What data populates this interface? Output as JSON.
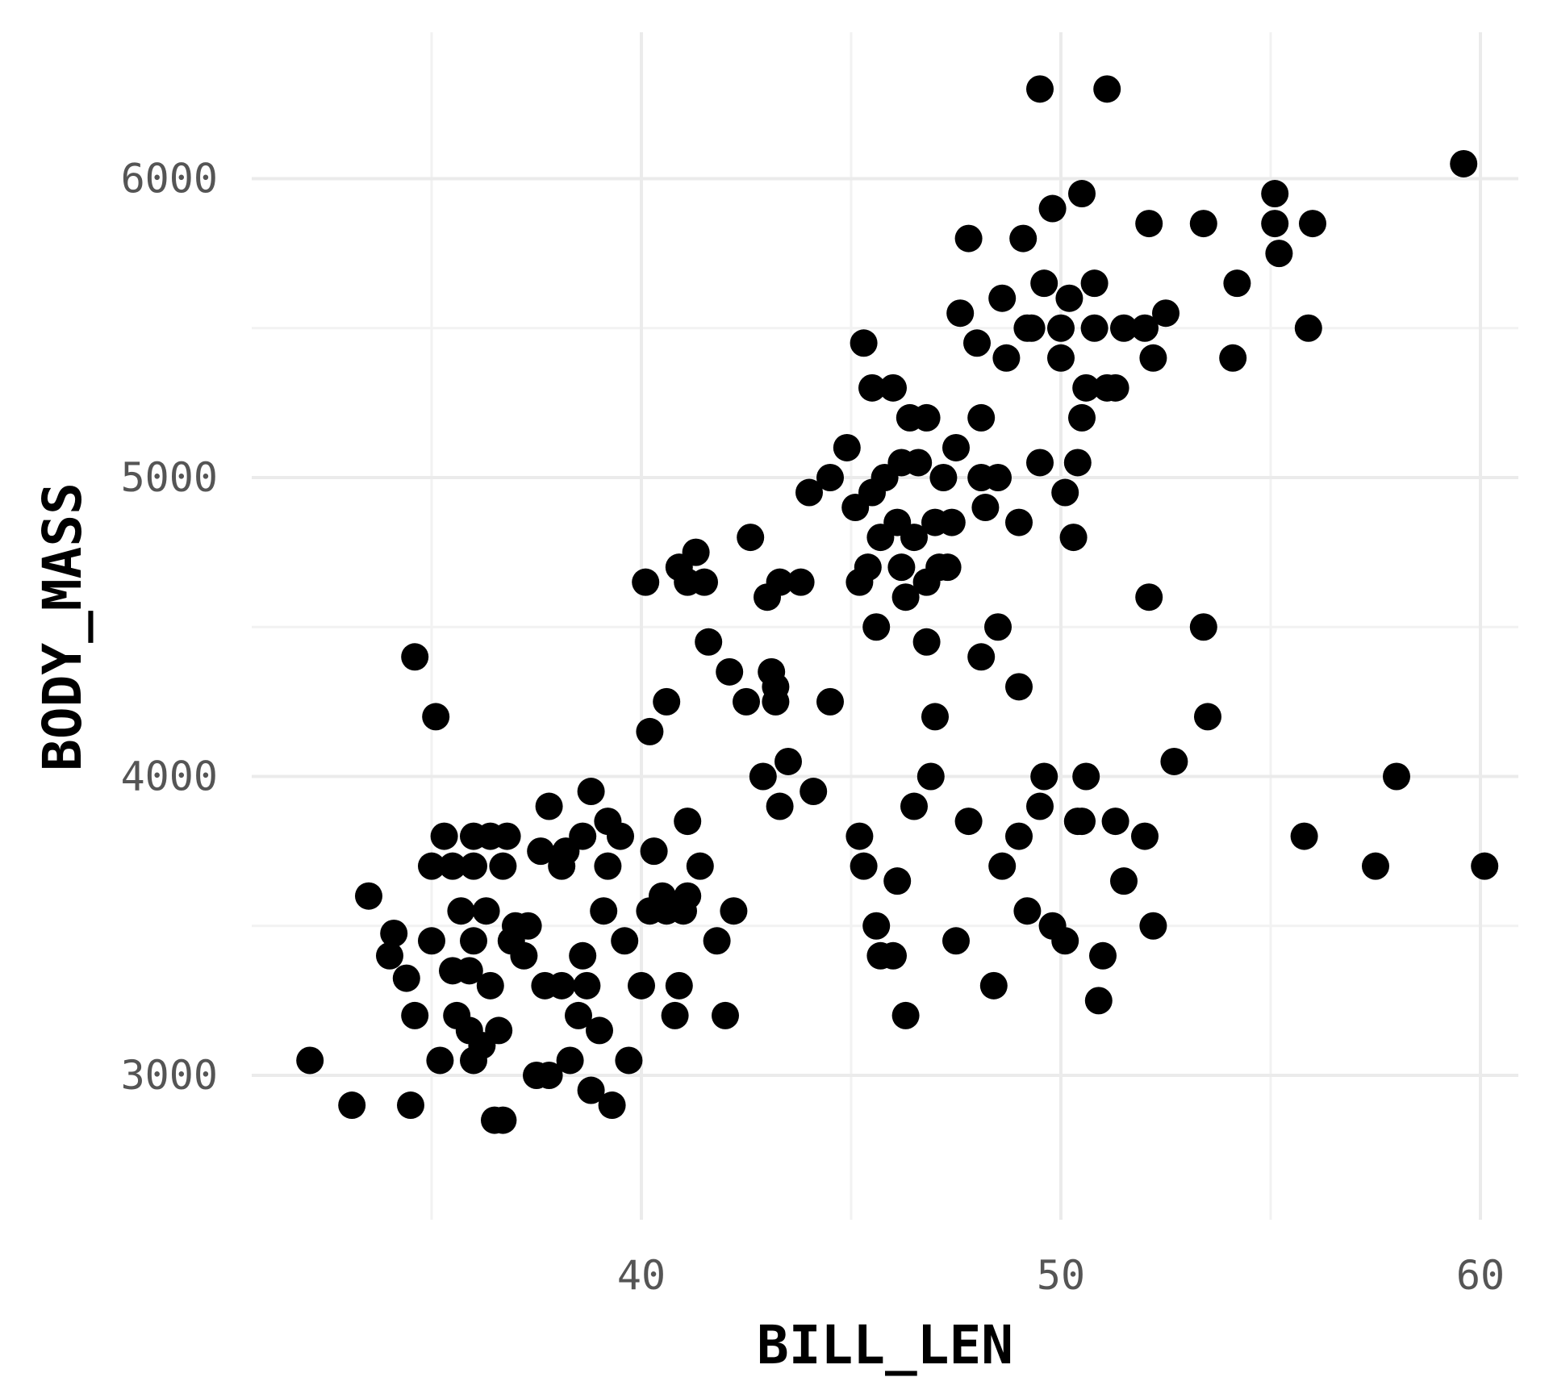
{
  "chart_data": {
    "type": "scatter",
    "xlabel": "BILL_LEN",
    "ylabel": "BODY_MASS",
    "xlim": [
      31.5,
      61
    ],
    "ylim": [
      2500,
      6500
    ],
    "x_ticks": [
      40,
      50,
      60
    ],
    "x_tick_labels": [
      "40",
      "50",
      "60"
    ],
    "y_ticks": [
      3000,
      4000,
      5000,
      6000
    ],
    "y_tick_labels": [
      "3000",
      "4000",
      "5000",
      "6000"
    ],
    "x_minor_ticks": [
      35,
      45,
      55
    ],
    "y_minor_ticks": [
      3500,
      4500,
      5500
    ],
    "grid": true,
    "legend": "none",
    "point_color": "#000000",
    "points": [
      [
        32.1,
        3050
      ],
      [
        33.1,
        2900
      ],
      [
        33.5,
        3600
      ],
      [
        34.0,
        3400
      ],
      [
        34.1,
        3475
      ],
      [
        34.4,
        3325
      ],
      [
        34.5,
        2900
      ],
      [
        34.6,
        3200
      ],
      [
        34.6,
        4400
      ],
      [
        35.0,
        3700
      ],
      [
        35.0,
        3450
      ],
      [
        35.1,
        4200
      ],
      [
        35.2,
        3050
      ],
      [
        35.3,
        3800
      ],
      [
        35.5,
        3350
      ],
      [
        35.5,
        3700
      ],
      [
        35.6,
        3200
      ],
      [
        35.7,
        3550
      ],
      [
        35.9,
        3350
      ],
      [
        35.9,
        3150
      ],
      [
        36.0,
        3800
      ],
      [
        36.0,
        3450
      ],
      [
        36.0,
        3050
      ],
      [
        36.0,
        3700
      ],
      [
        36.2,
        3100
      ],
      [
        36.3,
        3550
      ],
      [
        36.4,
        3300
      ],
      [
        36.4,
        3800
      ],
      [
        36.5,
        2850
      ],
      [
        36.6,
        3150
      ],
      [
        36.7,
        2850
      ],
      [
        36.7,
        3700
      ],
      [
        36.8,
        3800
      ],
      [
        36.9,
        3450
      ],
      [
        37.0,
        3500
      ],
      [
        37.2,
        3400
      ],
      [
        37.3,
        3500
      ],
      [
        37.5,
        3000
      ],
      [
        37.6,
        3750
      ],
      [
        37.7,
        3300
      ],
      [
        37.8,
        3000
      ],
      [
        37.8,
        3900
      ],
      [
        38.1,
        3700
      ],
      [
        38.1,
        3300
      ],
      [
        38.2,
        3750
      ],
      [
        38.3,
        3050
      ],
      [
        38.5,
        3200
      ],
      [
        38.6,
        3800
      ],
      [
        38.6,
        3400
      ],
      [
        38.7,
        3300
      ],
      [
        38.8,
        2950
      ],
      [
        38.8,
        3950
      ],
      [
        39.0,
        3150
      ],
      [
        39.1,
        3550
      ],
      [
        39.2,
        3700
      ],
      [
        39.2,
        3850
      ],
      [
        39.3,
        2900
      ],
      [
        39.5,
        3800
      ],
      [
        39.6,
        3450
      ],
      [
        39.7,
        3050
      ],
      [
        40.0,
        3300
      ],
      [
        40.1,
        4650
      ],
      [
        40.2,
        3550
      ],
      [
        40.2,
        4150
      ],
      [
        40.3,
        3750
      ],
      [
        40.5,
        3600
      ],
      [
        40.6,
        3550
      ],
      [
        40.6,
        4250
      ],
      [
        40.8,
        3200
      ],
      [
        40.9,
        3300
      ],
      [
        41.0,
        3550
      ],
      [
        41.1,
        3850
      ],
      [
        41.1,
        3600
      ],
      [
        41.1,
        4650
      ],
      [
        41.4,
        3700
      ],
      [
        41.5,
        4650
      ],
      [
        41.6,
        4450
      ],
      [
        41.8,
        3450
      ],
      [
        42.0,
        3200
      ],
      [
        42.2,
        3550
      ],
      [
        42.5,
        4250
      ],
      [
        42.9,
        4000
      ],
      [
        43.1,
        4350
      ],
      [
        43.2,
        4250
      ],
      [
        43.3,
        3900
      ],
      [
        43.5,
        4050
      ],
      [
        44.1,
        3950
      ],
      [
        44.5,
        4250
      ],
      [
        45.2,
        3800
      ],
      [
        45.3,
        3700
      ],
      [
        45.4,
        4700
      ],
      [
        45.6,
        3500
      ],
      [
        45.7,
        3400
      ],
      [
        46.0,
        3400
      ],
      [
        46.1,
        3650
      ],
      [
        46.3,
        3200
      ],
      [
        46.5,
        3900
      ],
      [
        46.9,
        4000
      ],
      [
        47.0,
        4200
      ],
      [
        47.5,
        3450
      ],
      [
        47.8,
        3850
      ],
      [
        48.1,
        4400
      ],
      [
        48.4,
        3300
      ],
      [
        48.6,
        3700
      ],
      [
        49.0,
        3800
      ],
      [
        49.2,
        3550
      ],
      [
        49.5,
        3900
      ],
      [
        49.6,
        4000
      ],
      [
        49.8,
        3500
      ],
      [
        50.1,
        3450
      ],
      [
        50.4,
        3850
      ],
      [
        50.5,
        3850
      ],
      [
        50.6,
        4000
      ],
      [
        50.9,
        3250
      ],
      [
        51.0,
        3400
      ],
      [
        51.3,
        3850
      ],
      [
        51.5,
        3650
      ],
      [
        52.0,
        3800
      ],
      [
        52.2,
        3500
      ],
      [
        52.7,
        4050
      ],
      [
        53.5,
        4200
      ],
      [
        55.8,
        3800
      ],
      [
        57.5,
        3700
      ],
      [
        58.0,
        4000
      ],
      [
        60.1,
        3700
      ],
      [
        40.9,
        4700
      ],
      [
        41.3,
        4750
      ],
      [
        42.1,
        4350
      ],
      [
        42.6,
        4800
      ],
      [
        43.0,
        4600
      ],
      [
        43.2,
        4300
      ],
      [
        43.8,
        4650
      ],
      [
        44.0,
        4950
      ],
      [
        44.5,
        5000
      ],
      [
        45.1,
        4900
      ],
      [
        45.5,
        5300
      ],
      [
        45.8,
        5000
      ],
      [
        46.2,
        5050
      ],
      [
        46.4,
        5200
      ],
      [
        46.8,
        5200
      ],
      [
        47.2,
        5000
      ],
      [
        47.3,
        4700
      ],
      [
        47.6,
        5550
      ],
      [
        48.1,
        5200
      ],
      [
        48.2,
        4900
      ],
      [
        48.5,
        5000
      ],
      [
        48.7,
        5400
      ],
      [
        49.1,
        5800
      ],
      [
        49.3,
        5500
      ],
      [
        49.5,
        6300
      ],
      [
        49.6,
        5650
      ],
      [
        49.8,
        5900
      ],
      [
        50.0,
        5500
      ],
      [
        50.2,
        5600
      ],
      [
        50.5,
        5950
      ],
      [
        50.8,
        5650
      ],
      [
        51.1,
        6300
      ],
      [
        51.5,
        5500
      ],
      [
        52.1,
        5850
      ],
      [
        52.5,
        5550
      ],
      [
        53.4,
        5850
      ],
      [
        55.1,
        5850
      ],
      [
        55.9,
        5500
      ],
      [
        59.6,
        6050
      ],
      [
        45.2,
        4650
      ],
      [
        45.7,
        4800
      ],
      [
        46.5,
        4800
      ],
      [
        47.0,
        4850
      ],
      [
        47.5,
        5100
      ],
      [
        48.0,
        5450
      ],
      [
        49.0,
        4850
      ],
      [
        50.0,
        5400
      ],
      [
        45.3,
        5450
      ],
      [
        46.0,
        5300
      ],
      [
        46.6,
        5050
      ],
      [
        47.8,
        5800
      ],
      [
        48.6,
        5600
      ],
      [
        49.2,
        5500
      ],
      [
        50.6,
        5300
      ],
      [
        51.3,
        5300
      ],
      [
        52.2,
        5400
      ],
      [
        43.3,
        4650
      ],
      [
        44.9,
        5100
      ],
      [
        45.5,
        4950
      ],
      [
        46.1,
        4850
      ],
      [
        46.2,
        4700
      ],
      [
        46.8,
        4650
      ],
      [
        47.4,
        4850
      ],
      [
        48.1,
        5000
      ],
      [
        49.5,
        5050
      ],
      [
        50.1,
        4950
      ],
      [
        50.4,
        5050
      ],
      [
        50.5,
        5200
      ],
      [
        50.8,
        5500
      ],
      [
        51.1,
        5300
      ],
      [
        52.0,
        5500
      ],
      [
        54.2,
        5650
      ],
      [
        55.1,
        5950
      ],
      [
        45.6,
        4500
      ],
      [
        46.3,
        4600
      ],
      [
        46.8,
        4450
      ],
      [
        47.1,
        4700
      ],
      [
        48.5,
        4500
      ],
      [
        49.0,
        4300
      ],
      [
        50.3,
        4800
      ],
      [
        52.1,
        4600
      ],
      [
        53.4,
        4500
      ],
      [
        54.1,
        5400
      ],
      [
        55.2,
        5750
      ],
      [
        56.0,
        5850
      ]
    ]
  }
}
